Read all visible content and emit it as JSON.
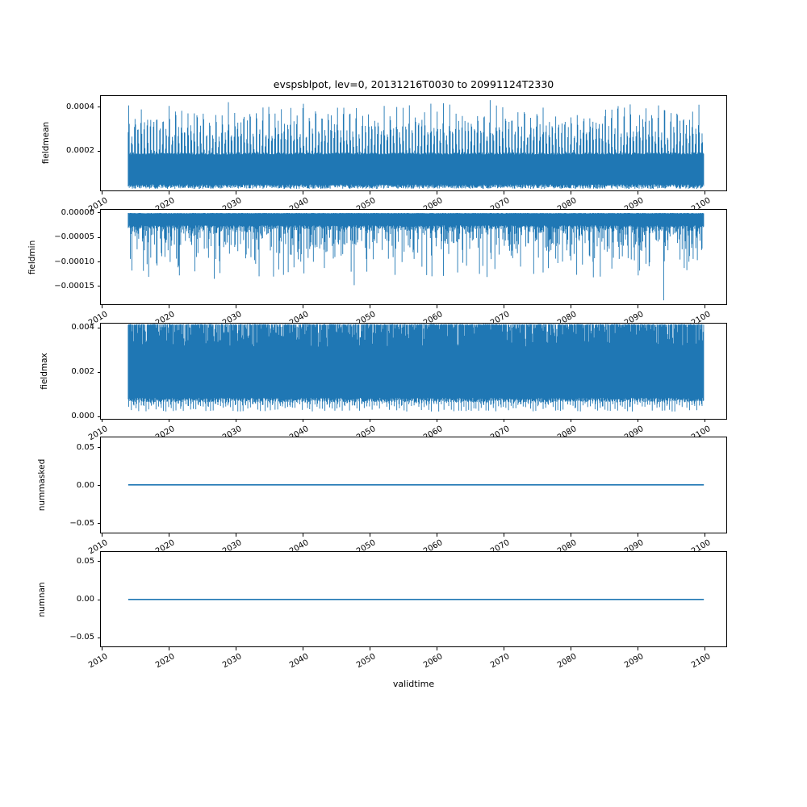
{
  "figure": {
    "title": "evspsblpot, lev=0, 20131216T0030 to 20991124T2330",
    "xlabel": "validtime",
    "background_color": "#ffffff",
    "line_color": "#1f77b4",
    "axis_color": "#000000",
    "x_tick_labels": [
      "2010",
      "2020",
      "2030",
      "2040",
      "2050",
      "2060",
      "2070",
      "2080",
      "2090",
      "2100"
    ],
    "subplots": [
      {
        "ylabel": "fieldmean",
        "y_tick_labels": [
          "0.0004",
          "0.0002"
        ]
      },
      {
        "ylabel": "fieldmin",
        "y_tick_labels": [
          "0.00000",
          "−0.00005",
          "−0.00010",
          "−0.00015"
        ]
      },
      {
        "ylabel": "fieldmax",
        "y_tick_labels": [
          "0.004",
          "0.002",
          "0.000"
        ]
      },
      {
        "ylabel": "nummasked",
        "y_tick_labels": [
          "0.05",
          "0.00",
          "−0.05"
        ]
      },
      {
        "ylabel": "numnan",
        "y_tick_labels": [
          "0.05",
          "0.00",
          "−0.05"
        ]
      }
    ]
  },
  "chart_data": [
    {
      "type": "line",
      "name": "fieldmean",
      "title": "evspsblpot, lev=0, 20131216T0030 to 20991124T2330",
      "x": {
        "label": "validtime",
        "ticks": [
          2010,
          2020,
          2030,
          2040,
          2050,
          2060,
          2070,
          2080,
          2090,
          2100
        ],
        "lim": [
          2009.88,
          2103.25
        ],
        "data_range": [
          2013.96,
          2099.9
        ]
      },
      "ylim": [
        2.05e-05,
        0.00045
      ],
      "y_ticks": [
        0.0004,
        0.0002
      ],
      "pattern": "dense noisy series: solid band from ~0.00004 up to ~0.00019 with ~2 sharp envelope peaks per year reaching 0.00025-0.00043",
      "band_floor": 4e-05,
      "band_top": 0.000185,
      "needles_per_year": 2.15,
      "peak_min": 0.00025,
      "peak_max": 0.000435
    },
    {
      "type": "line",
      "name": "fieldmin",
      "x": {
        "label": "validtime",
        "ticks": [
          2010,
          2020,
          2030,
          2040,
          2050,
          2060,
          2070,
          2080,
          2090,
          2100
        ],
        "lim": [
          2009.88,
          2103.25
        ],
        "data_range": [
          2013.96,
          2099.9
        ]
      },
      "ylim": [
        -0.000188,
        6e-06
      ],
      "y_ticks": [
        0.0,
        -5e-05,
        -0.0001,
        -0.00015
      ],
      "pattern": "dense negative spikes hanging from 0: solid mass 0 to ~-0.00005, frequent spikes to -0.00008..-0.00013, rare deeper minima",
      "band_top": 0.0,
      "band_bottom": -5e-05,
      "spike_typical": -0.0001,
      "notable_minima": [
        [
          2021.6,
          -0.000128
        ],
        [
          2026.8,
          -0.000135
        ],
        [
          2033.5,
          -0.00013
        ],
        [
          2040.2,
          -0.000124
        ],
        [
          2047.7,
          -0.000148
        ],
        [
          2053.8,
          -0.000127
        ],
        [
          2059.3,
          -0.00013
        ],
        [
          2066.4,
          -0.000125
        ],
        [
          2075.9,
          -0.000122
        ],
        [
          2083.4,
          -0.000132
        ],
        [
          2090.1,
          -0.000128
        ],
        [
          2093.9,
          -0.000179
        ]
      ]
    },
    {
      "type": "line",
      "name": "fieldmax",
      "x": {
        "label": "validtime",
        "ticks": [
          2010,
          2020,
          2030,
          2040,
          2050,
          2060,
          2070,
          2080,
          2090,
          2100
        ],
        "lim": [
          2009.88,
          2103.25
        ],
        "data_range": [
          2013.96,
          2099.9
        ]
      },
      "ylim": [
        -0.000115,
        0.00417
      ],
      "y_ticks": [
        0.004,
        0.002,
        0.0
      ],
      "pattern": "nearly solid block: top envelope ~0.00415 with thin notch gaps down to ~0.0032, bottom envelope ~0.0008 with ~2.7 needles per year dipping to ~0.0002",
      "top_envelope": 0.00415,
      "top_notch_min": 0.0032,
      "bottom_envelope": 0.00082,
      "bottom_needle_min": 0.0002,
      "bottom_needles_per_year": 2.7
    },
    {
      "type": "line",
      "name": "nummasked",
      "x": {
        "label": "validtime",
        "ticks": [
          2010,
          2020,
          2030,
          2040,
          2050,
          2060,
          2070,
          2080,
          2090,
          2100
        ],
        "lim": [
          2009.88,
          2103.25
        ],
        "data_range": [
          2013.96,
          2099.9
        ]
      },
      "ylim": [
        -0.0625,
        0.0625
      ],
      "y_ticks": [
        0.05,
        0.0,
        -0.05
      ],
      "pattern": "constant horizontal line",
      "constant_value": 0.0
    },
    {
      "type": "line",
      "name": "numnan",
      "x": {
        "label": "validtime",
        "ticks": [
          2010,
          2020,
          2030,
          2040,
          2050,
          2060,
          2070,
          2080,
          2090,
          2100
        ],
        "lim": [
          2009.88,
          2103.25
        ],
        "data_range": [
          2013.96,
          2099.9
        ]
      },
      "ylim": [
        -0.0625,
        0.0625
      ],
      "y_ticks": [
        0.05,
        0.0,
        -0.05
      ],
      "pattern": "constant horizontal line",
      "constant_value": 0.0
    }
  ]
}
